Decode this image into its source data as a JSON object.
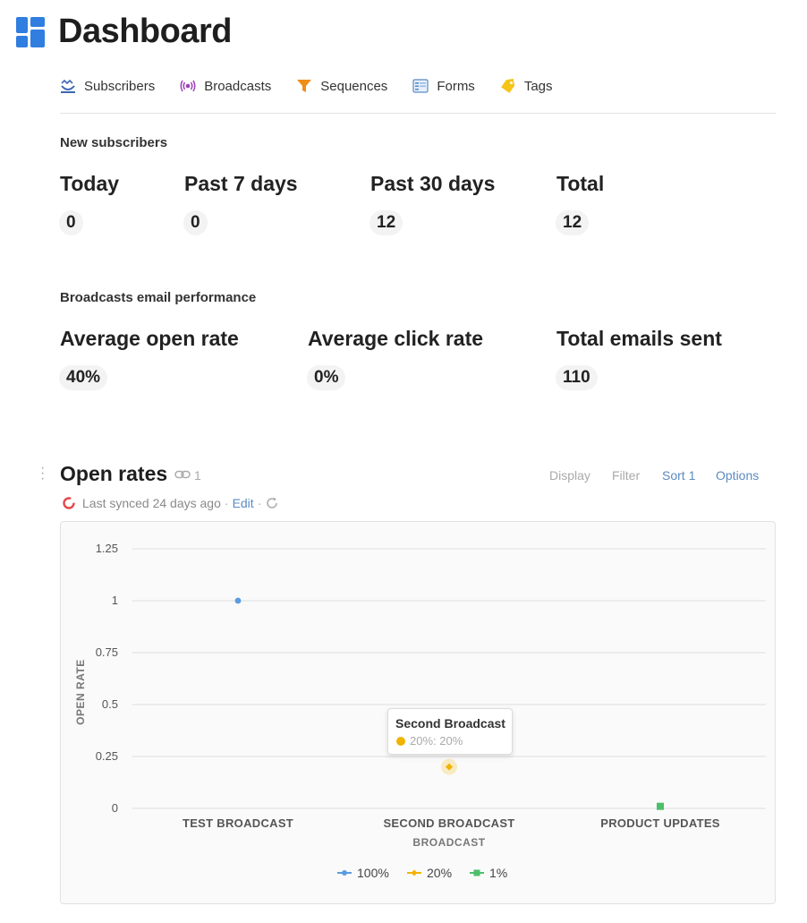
{
  "page": {
    "title": "Dashboard"
  },
  "nav": [
    {
      "label": "Subscribers",
      "icon": "subscribers-icon"
    },
    {
      "label": "Broadcasts",
      "icon": "broadcast-icon"
    },
    {
      "label": "Sequences",
      "icon": "funnel-icon"
    },
    {
      "label": "Forms",
      "icon": "form-icon"
    },
    {
      "label": "Tags",
      "icon": "tag-icon"
    }
  ],
  "new_subscribers": {
    "title": "New subscribers",
    "stats": [
      {
        "label": "Today",
        "value": "0"
      },
      {
        "label": "Past 7 days",
        "value": "0"
      },
      {
        "label": "Past 30 days",
        "value": "12"
      },
      {
        "label": "Total",
        "value": "12"
      }
    ]
  },
  "performance": {
    "title": "Broadcasts email performance",
    "stats": [
      {
        "label": "Average open rate",
        "value": "40%"
      },
      {
        "label": "Average click rate",
        "value": "0%"
      },
      {
        "label": "Total emails sent",
        "value": "110"
      }
    ]
  },
  "view": {
    "title": "Open rates",
    "link_count": "1",
    "toolbar": {
      "display": "Display",
      "filter": "Filter",
      "sort": "Sort 1",
      "options": "Options"
    },
    "sync": {
      "text": "Last synced 24 days ago",
      "edit": "Edit"
    }
  },
  "tooltip": {
    "title": "Second Broadcast",
    "series": "20%:",
    "value": "20%"
  },
  "colors": {
    "accent_blue": "#5b8bc1",
    "series_1": "#5b9be0",
    "series_2": "#f0b400",
    "series_3": "#4cbf6a"
  },
  "chart_data": {
    "type": "scatter",
    "xlabel": "BROADCAST",
    "ylabel": "OPEN RATE",
    "categories": [
      "TEST BROADCAST",
      "SECOND BROADCAST",
      "PRODUCT UPDATES"
    ],
    "yticks": [
      "0",
      "0.25",
      "0.5",
      "0.75",
      "1",
      "1.25"
    ],
    "ylim": [
      0,
      1.25
    ],
    "grid": true,
    "legend_position": "bottom",
    "series": [
      {
        "name": "100%",
        "marker": "circle",
        "color": "#5b9be0",
        "points": [
          {
            "category": "TEST BROADCAST",
            "value": 1
          }
        ]
      },
      {
        "name": "20%",
        "marker": "diamond",
        "color": "#f0b400",
        "points": [
          {
            "category": "SECOND BROADCAST",
            "value": 0.2
          }
        ]
      },
      {
        "name": "1%",
        "marker": "square",
        "color": "#4cbf6a",
        "points": [
          {
            "category": "PRODUCT UPDATES",
            "value": 0.01
          }
        ]
      }
    ]
  }
}
